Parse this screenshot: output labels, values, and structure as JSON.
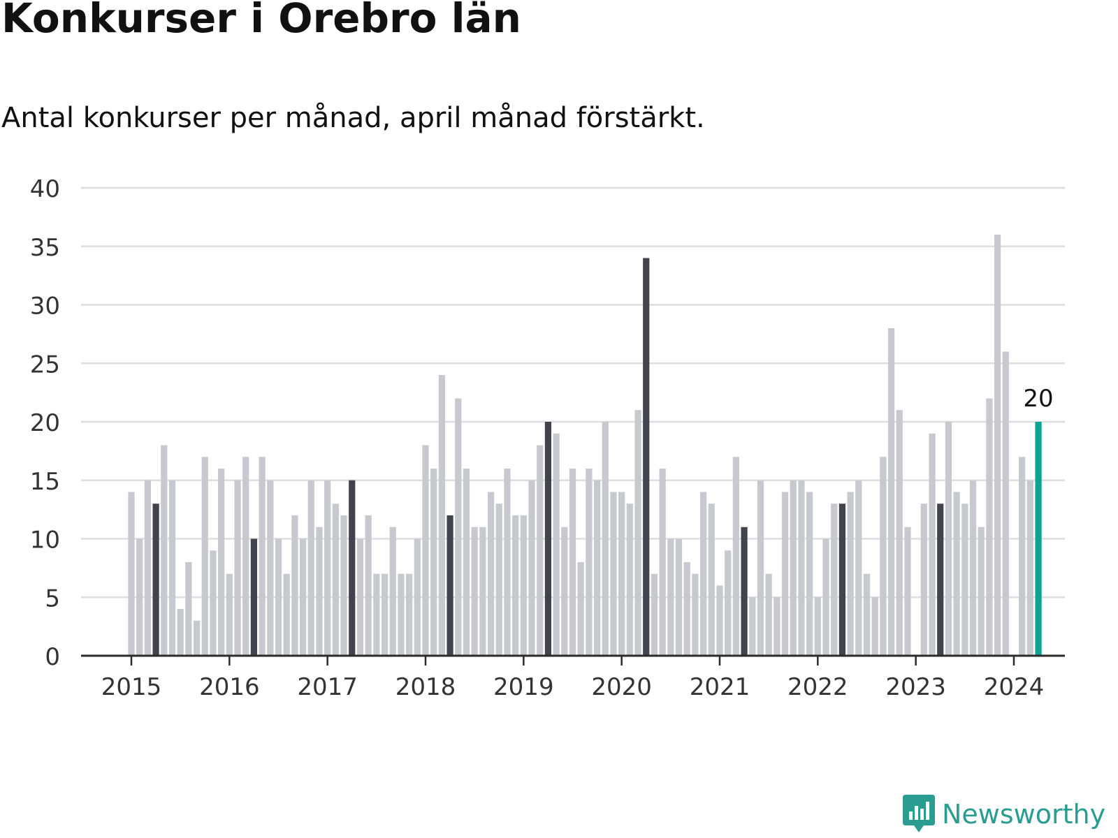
{
  "title": "Konkurser i Orebro län",
  "subtitle": "Antal konkurser per månad, april månad förstärkt.",
  "branding": {
    "logo_text": "Newsworthy",
    "logo_color": "#2a9d90"
  },
  "colors": {
    "normal": "#c8c8cf",
    "april": "#43434e",
    "latest": "#0ca394",
    "grid": "#dedee2",
    "axis": "#2b2b2b"
  },
  "chart_data": {
    "type": "bar",
    "ylim": [
      0,
      40
    ],
    "y_ticks": [
      0,
      5,
      10,
      15,
      20,
      25,
      30,
      35,
      40
    ],
    "x_tick_labels": [
      "2015",
      "2016",
      "2017",
      "2018",
      "2019",
      "2020",
      "2021",
      "2022",
      "2023",
      "2024"
    ],
    "start": "2015-01",
    "annotation": {
      "month": "2024-04",
      "text": "20"
    },
    "highlight_month": "April",
    "values": [
      14,
      10,
      15,
      13,
      18,
      15,
      4,
      8,
      3,
      17,
      9,
      16,
      7,
      15,
      17,
      10,
      17,
      15,
      10,
      7,
      12,
      10,
      15,
      11,
      15,
      13,
      12,
      15,
      10,
      12,
      7,
      7,
      11,
      7,
      7,
      10,
      18,
      16,
      24,
      12,
      22,
      16,
      11,
      11,
      14,
      13,
      16,
      12,
      12,
      15,
      18,
      20,
      19,
      11,
      16,
      8,
      16,
      15,
      20,
      14,
      14,
      13,
      21,
      34,
      7,
      16,
      10,
      10,
      8,
      7,
      14,
      13,
      6,
      9,
      17,
      11,
      5,
      15,
      7,
      5,
      14,
      15,
      15,
      14,
      5,
      10,
      13,
      13,
      14,
      15,
      7,
      5,
      17,
      28,
      21,
      11,
      0,
      13,
      19,
      13,
      20,
      14,
      13,
      15,
      11,
      22,
      36,
      26,
      0,
      17,
      15,
      20
    ]
  }
}
